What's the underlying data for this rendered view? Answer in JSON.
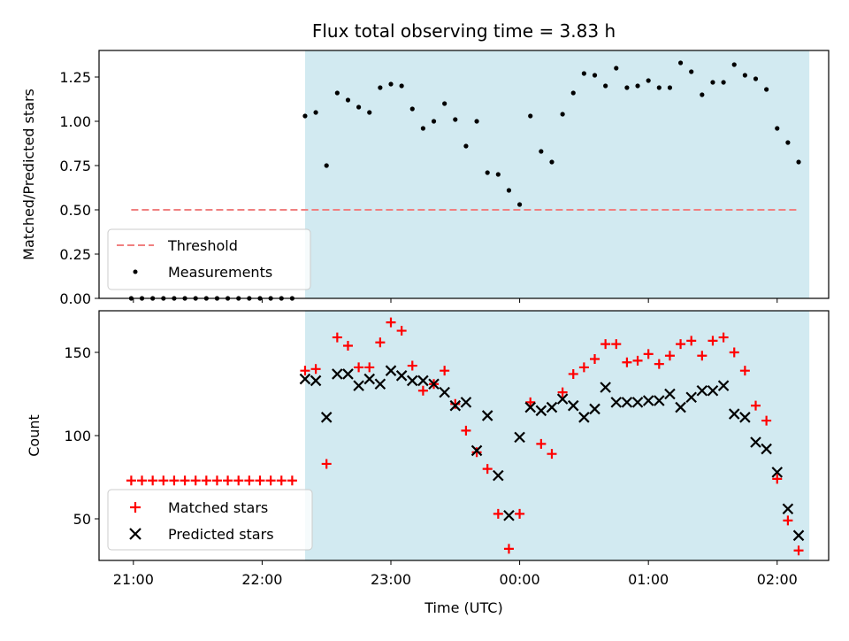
{
  "chart_data": [
    {
      "type": "scatter",
      "title": "Flux total observing time = 3.83 h",
      "xlabel": "",
      "ylabel": "Matched/Predicted stars",
      "ylim": [
        0,
        1.4
      ],
      "yticks": [
        "0.00",
        "0.25",
        "0.50",
        "0.75",
        "1.00",
        "1.25"
      ],
      "threshold": 0.5,
      "threshold_color": "#f08080",
      "shade_start": "22:20",
      "shade_end": "02:15",
      "shade_color": "#add8e6",
      "legend_loc": "lower-left",
      "legend": [
        "Threshold",
        "Measurements"
      ],
      "series": [
        {
          "name": "Measurements",
          "color": "#000000",
          "points": [
            [
              "20:59",
              0
            ],
            [
              "21:04",
              0
            ],
            [
              "21:09",
              0
            ],
            [
              "21:14",
              0
            ],
            [
              "21:19",
              0
            ],
            [
              "21:24",
              0
            ],
            [
              "21:29",
              0
            ],
            [
              "21:34",
              0
            ],
            [
              "21:39",
              0
            ],
            [
              "21:44",
              0
            ],
            [
              "21:49",
              0
            ],
            [
              "21:54",
              0
            ],
            [
              "21:59",
              0
            ],
            [
              "22:04",
              0
            ],
            [
              "22:09",
              0
            ],
            [
              "22:14",
              0
            ],
            [
              "22:20",
              1.03
            ],
            [
              "22:25",
              1.05
            ],
            [
              "22:30",
              0.75
            ],
            [
              "22:35",
              1.16
            ],
            [
              "22:40",
              1.12
            ],
            [
              "22:45",
              1.08
            ],
            [
              "22:50",
              1.05
            ],
            [
              "22:55",
              1.19
            ],
            [
              "23:00",
              1.21
            ],
            [
              "23:05",
              1.2
            ],
            [
              "23:10",
              1.07
            ],
            [
              "23:15",
              0.96
            ],
            [
              "23:20",
              1.0
            ],
            [
              "23:25",
              1.1
            ],
            [
              "23:30",
              1.01
            ],
            [
              "23:35",
              0.86
            ],
            [
              "23:40",
              1.0
            ],
            [
              "23:45",
              0.71
            ],
            [
              "23:50",
              0.7
            ],
            [
              "23:55",
              0.61
            ],
            [
              "00:00",
              0.53
            ],
            [
              "00:05",
              1.03
            ],
            [
              "00:10",
              0.83
            ],
            [
              "00:15",
              0.77
            ],
            [
              "00:20",
              1.04
            ],
            [
              "00:25",
              1.16
            ],
            [
              "00:30",
              1.27
            ],
            [
              "00:35",
              1.26
            ],
            [
              "00:40",
              1.2
            ],
            [
              "00:45",
              1.3
            ],
            [
              "00:50",
              1.19
            ],
            [
              "00:55",
              1.2
            ],
            [
              "01:00",
              1.23
            ],
            [
              "01:05",
              1.19
            ],
            [
              "01:10",
              1.19
            ],
            [
              "01:15",
              1.33
            ],
            [
              "01:20",
              1.28
            ],
            [
              "01:25",
              1.15
            ],
            [
              "01:30",
              1.22
            ],
            [
              "01:35",
              1.22
            ],
            [
              "01:40",
              1.32
            ],
            [
              "01:45",
              1.26
            ],
            [
              "01:50",
              1.24
            ],
            [
              "01:55",
              1.18
            ],
            [
              "02:00",
              0.96
            ],
            [
              "02:05",
              0.88
            ],
            [
              "02:10",
              0.77
            ]
          ]
        }
      ]
    },
    {
      "type": "scatter",
      "title": "",
      "xlabel": "Time (UTC)",
      "ylabel": "Count",
      "ylim": [
        25,
        175
      ],
      "yticks": [
        "50",
        "100",
        "150"
      ],
      "xticks": [
        "21:00",
        "22:00",
        "23:00",
        "00:00",
        "01:00",
        "02:00"
      ],
      "shade_start": "22:20",
      "shade_end": "02:15",
      "shade_color": "#add8e6",
      "legend_loc": "lower-left",
      "legend": [
        "Matched stars",
        "Predicted stars"
      ],
      "series": [
        {
          "name": "Matched stars",
          "marker": "plus",
          "color": "#ff0000",
          "points": [
            [
              "20:59",
              73
            ],
            [
              "21:04",
              73
            ],
            [
              "21:09",
              73
            ],
            [
              "21:14",
              73
            ],
            [
              "21:19",
              73
            ],
            [
              "21:24",
              73
            ],
            [
              "21:29",
              73
            ],
            [
              "21:34",
              73
            ],
            [
              "21:39",
              73
            ],
            [
              "21:44",
              73
            ],
            [
              "21:49",
              73
            ],
            [
              "21:54",
              73
            ],
            [
              "21:59",
              73
            ],
            [
              "22:04",
              73
            ],
            [
              "22:09",
              73
            ],
            [
              "22:14",
              73
            ],
            [
              "22:20",
              139
            ],
            [
              "22:25",
              140
            ],
            [
              "22:30",
              83
            ],
            [
              "22:35",
              159
            ],
            [
              "22:40",
              154
            ],
            [
              "22:45",
              141
            ],
            [
              "22:50",
              141
            ],
            [
              "22:55",
              156
            ],
            [
              "23:00",
              168
            ],
            [
              "23:05",
              163
            ],
            [
              "23:10",
              142
            ],
            [
              "23:15",
              127
            ],
            [
              "23:20",
              131
            ],
            [
              "23:25",
              139
            ],
            [
              "23:30",
              119
            ],
            [
              "23:35",
              103
            ],
            [
              "23:40",
              90
            ],
            [
              "23:45",
              80
            ],
            [
              "23:50",
              53
            ],
            [
              "23:55",
              32
            ],
            [
              "00:00",
              53
            ],
            [
              "00:05",
              120
            ],
            [
              "00:10",
              95
            ],
            [
              "00:15",
              89
            ],
            [
              "00:20",
              126
            ],
            [
              "00:25",
              137
            ],
            [
              "00:30",
              141
            ],
            [
              "00:35",
              146
            ],
            [
              "00:40",
              155
            ],
            [
              "00:45",
              155
            ],
            [
              "00:50",
              144
            ],
            [
              "00:55",
              145
            ],
            [
              "01:00",
              149
            ],
            [
              "01:05",
              143
            ],
            [
              "01:10",
              148
            ],
            [
              "01:15",
              155
            ],
            [
              "01:20",
              157
            ],
            [
              "01:25",
              148
            ],
            [
              "01:30",
              157
            ],
            [
              "01:35",
              159
            ],
            [
              "01:40",
              150
            ],
            [
              "01:45",
              139
            ],
            [
              "01:50",
              118
            ],
            [
              "01:55",
              109
            ],
            [
              "02:00",
              74
            ],
            [
              "02:05",
              49
            ],
            [
              "02:10",
              31
            ]
          ]
        },
        {
          "name": "Predicted stars",
          "marker": "x",
          "color": "#000000",
          "points": [
            [
              "22:20",
              134
            ],
            [
              "22:25",
              133
            ],
            [
              "22:30",
              111
            ],
            [
              "22:35",
              137
            ],
            [
              "22:40",
              137
            ],
            [
              "22:45",
              130
            ],
            [
              "22:50",
              134
            ],
            [
              "22:55",
              131
            ],
            [
              "23:00",
              139
            ],
            [
              "23:05",
              136
            ],
            [
              "23:10",
              133
            ],
            [
              "23:15",
              133
            ],
            [
              "23:20",
              131
            ],
            [
              "23:25",
              126
            ],
            [
              "23:30",
              118
            ],
            [
              "23:35",
              120
            ],
            [
              "23:40",
              91
            ],
            [
              "23:45",
              112
            ],
            [
              "23:50",
              76
            ],
            [
              "23:55",
              52
            ],
            [
              "00:00",
              99
            ],
            [
              "00:05",
              117
            ],
            [
              "00:10",
              115
            ],
            [
              "00:15",
              117
            ],
            [
              "00:20",
              122
            ],
            [
              "00:25",
              118
            ],
            [
              "00:30",
              111
            ],
            [
              "00:35",
              116
            ],
            [
              "00:40",
              129
            ],
            [
              "00:45",
              120
            ],
            [
              "00:50",
              120
            ],
            [
              "00:55",
              120
            ],
            [
              "01:00",
              121
            ],
            [
              "01:05",
              121
            ],
            [
              "01:10",
              125
            ],
            [
              "01:15",
              117
            ],
            [
              "01:20",
              123
            ],
            [
              "01:25",
              127
            ],
            [
              "01:30",
              127
            ],
            [
              "01:35",
              130
            ],
            [
              "01:40",
              113
            ],
            [
              "01:45",
              111
            ],
            [
              "01:50",
              96
            ],
            [
              "01:55",
              92
            ],
            [
              "02:00",
              78
            ],
            [
              "02:05",
              56
            ],
            [
              "02:10",
              40
            ]
          ]
        }
      ]
    }
  ]
}
